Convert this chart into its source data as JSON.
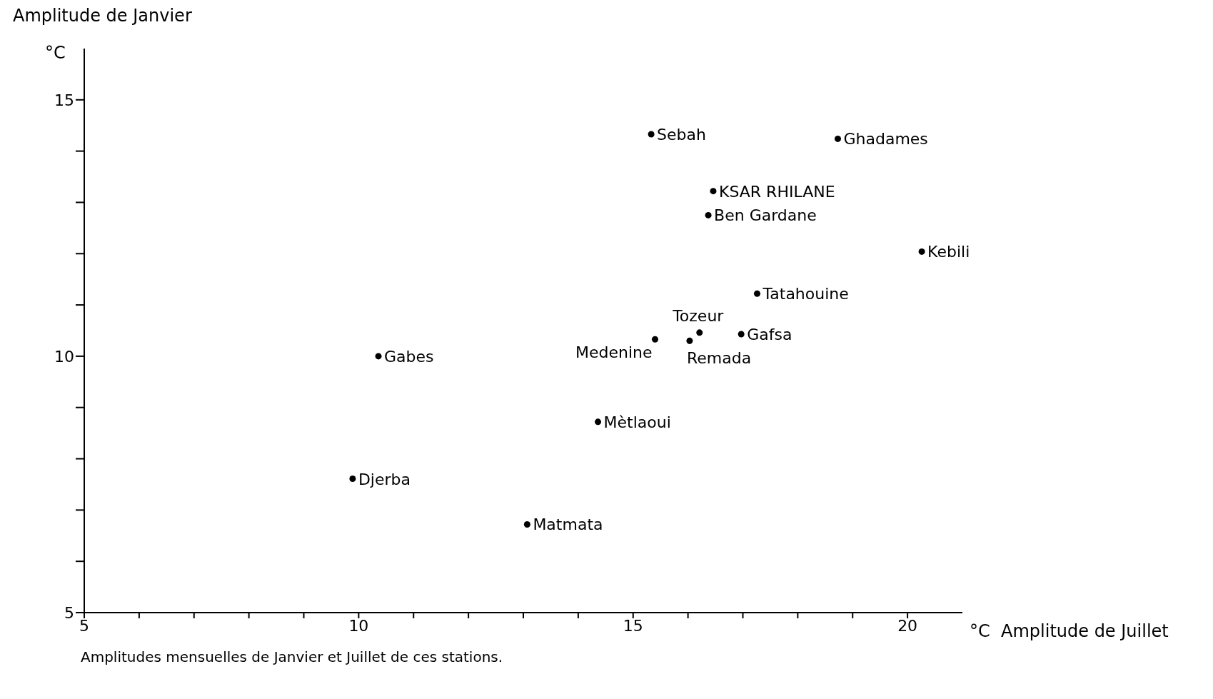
{
  "chart_data": {
    "type": "scatter",
    "ylabel": "Amplitude de Janvier",
    "xlabel": "°C  Amplitude de Juillet",
    "x": [
      15.33,
      18.73,
      16.46,
      16.37,
      20.26,
      17.26,
      16.21,
      16.97,
      15.4,
      16.03,
      10.36,
      14.36,
      9.89,
      13.07
    ],
    "series": [
      {
        "color": "#000000",
        "values": [
          14.33,
          14.24,
          13.22,
          12.75,
          12.04,
          11.22,
          10.46,
          10.43,
          10.33,
          10.3,
          10.0,
          8.72,
          7.61,
          6.72
        ]
      }
    ],
    "marker": "circle",
    "grid": false,
    "legend": false,
    "xlim": [
      5,
      21
    ],
    "xticks": [
      5,
      {
        "value": 6,
        "label": null
      },
      {
        "value": 7,
        "label": null
      },
      {
        "value": 8,
        "label": null
      },
      {
        "value": 9,
        "label": null
      },
      10,
      {
        "value": 11,
        "label": null
      },
      {
        "value": 12,
        "label": null
      },
      {
        "value": 13,
        "label": null
      },
      {
        "value": 14,
        "label": null
      },
      15,
      {
        "value": 16,
        "label": null
      },
      {
        "value": 17,
        "label": null
      },
      {
        "value": 18,
        "label": null
      },
      {
        "value": 19,
        "label": null
      },
      20
    ],
    "ylim": [
      5,
      16
    ],
    "yticks": [
      5,
      {
        "value": 6,
        "label": null
      },
      {
        "value": 7,
        "label": null
      },
      {
        "value": 8,
        "label": null
      },
      {
        "value": 9,
        "label": null
      },
      10,
      {
        "value": 11,
        "label": null
      },
      {
        "value": 12,
        "label": null
      },
      {
        "value": 13,
        "label": null
      },
      {
        "value": 14,
        "label": null
      },
      15
    ],
    "annotations": [
      "°C",
      "Amplitudes mensuelles de Janvier et Juillet de ces stations.",
      {
        "text": "Sebah",
        "x": 15.33,
        "y": 14.33
      },
      {
        "text": "Ghadames",
        "x": 18.73,
        "y": 14.24
      },
      {
        "text": "KSAR RHILANE",
        "x": 16.46,
        "y": 13.22
      },
      {
        "text": "Ben Gardane",
        "x": 16.37,
        "y": 12.75
      },
      {
        "text": "Kebili",
        "x": 20.26,
        "y": 12.04
      },
      {
        "text": "Tatahouine",
        "x": 17.26,
        "y": 11.22
      },
      {
        "text": "Tozeur",
        "x": 16.21,
        "y": 10.46
      },
      {
        "text": "Gafsa",
        "x": 16.97,
        "y": 10.43
      },
      {
        "text": "Medenine",
        "x": 15.4,
        "y": 10.33
      },
      {
        "text": "Remada",
        "x": 16.03,
        "y": 10.3
      },
      {
        "text": "Gabes",
        "x": 10.36,
        "y": 10.0
      },
      {
        "text": "Mètlaoui",
        "x": 14.36,
        "y": 8.72
      },
      {
        "text": "Djerba",
        "x": 9.89,
        "y": 7.61
      },
      {
        "text": "Matmata",
        "x": 13.07,
        "y": 6.72
      }
    ]
  }
}
